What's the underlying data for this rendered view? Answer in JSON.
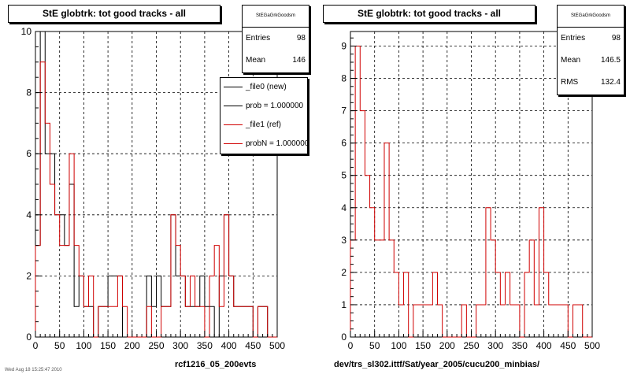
{
  "panels": [
    {
      "title": "StE globtrk: tot good tracks - all",
      "stats": {
        "name": "StEGaGrkGoodsm",
        "entries_label": "Entries",
        "entries": "98",
        "mean_label": "Mean",
        "mean": "146"
      },
      "xtitle": "rcf1216_05_200evts"
    },
    {
      "title": "StE globtrk: tot good tracks - all",
      "stats": {
        "name": "StEGaGrkGoodsm",
        "entries_label": "Entries",
        "entries": "98",
        "mean_label": "Mean",
        "mean": "146.5",
        "rms_label": "RMS",
        "rms": "132.4"
      },
      "xtitle": "dev/trs_sl302.ittf/Sat/year_2005/cucu200_minbias/"
    }
  ],
  "legend": [
    {
      "label": "_file0 (new)",
      "color": "#000000"
    },
    {
      "label": "prob = 1.000000",
      "color": "#000000"
    },
    {
      "label": "_file1 (ref)",
      "color": "#d00000"
    },
    {
      "label": "probN = 1.000000",
      "color": "#d00000"
    }
  ],
  "footer": "Wed Aug 18 15:25:47 2010",
  "chart_data": [
    {
      "type": "histogram",
      "title": "StE globtrk: tot good tracks - all",
      "xlabel": "rcf1216_05_200evts",
      "ylabel": "",
      "xlim": [
        0,
        500
      ],
      "ylim": [
        0,
        10
      ],
      "xticks": [
        0,
        50,
        100,
        150,
        200,
        250,
        300,
        350,
        400,
        450,
        500
      ],
      "yticks": [
        0,
        2,
        4,
        6,
        8,
        10
      ],
      "grid": true,
      "bin_width": 10,
      "series": [
        {
          "name": "_file0 (new)",
          "color": "#000000",
          "values": [
            3,
            10,
            6,
            6,
            4,
            4,
            3,
            5,
            1,
            2,
            1,
            1,
            0,
            1,
            1,
            2,
            2,
            2,
            0,
            0,
            0,
            0,
            0,
            2,
            1,
            2,
            1,
            1,
            4,
            2,
            2,
            1,
            1,
            1,
            2,
            1,
            1,
            0,
            2,
            4,
            2,
            1,
            1,
            1,
            1,
            0,
            1,
            1,
            0,
            0
          ]
        },
        {
          "name": "_file1 (ref)",
          "color": "#d00000",
          "values": [
            3,
            9,
            7,
            5,
            4,
            3,
            3,
            6,
            3,
            2,
            1,
            2,
            0,
            1,
            1,
            1,
            1,
            2,
            1,
            0,
            0,
            0,
            0,
            1,
            0,
            0,
            1,
            1,
            4,
            3,
            2,
            1,
            2,
            1,
            1,
            0,
            2,
            3,
            1,
            4,
            2,
            1,
            1,
            1,
            1,
            0,
            1,
            1,
            0,
            0
          ]
        }
      ]
    },
    {
      "type": "histogram",
      "title": "StE globtrk: tot good tracks - all",
      "xlabel": "dev/trs_sl302.ittf/Sat/year_2005/cucu200_minbias/",
      "ylabel": "",
      "xlim": [
        0,
        500
      ],
      "ylim": [
        0,
        9.45
      ],
      "xticks": [
        0,
        50,
        100,
        150,
        200,
        250,
        300,
        350,
        400,
        450,
        500
      ],
      "yticks": [
        0,
        1,
        2,
        3,
        4,
        5,
        6,
        7,
        8,
        9
      ],
      "grid": true,
      "bin_width": 10,
      "series": [
        {
          "name": "_file1 (ref)",
          "color": "#d00000",
          "values": [
            3,
            9,
            7,
            5,
            4,
            3,
            3,
            6,
            3,
            2,
            1,
            2,
            0,
            1,
            1,
            1,
            1,
            2,
            1,
            0,
            0,
            0,
            0,
            1,
            0,
            0,
            1,
            1,
            4,
            3,
            2,
            1,
            2,
            1,
            1,
            0,
            2,
            3,
            1,
            4,
            2,
            1,
            1,
            1,
            1,
            0,
            1,
            1,
            0,
            0
          ]
        }
      ]
    }
  ]
}
